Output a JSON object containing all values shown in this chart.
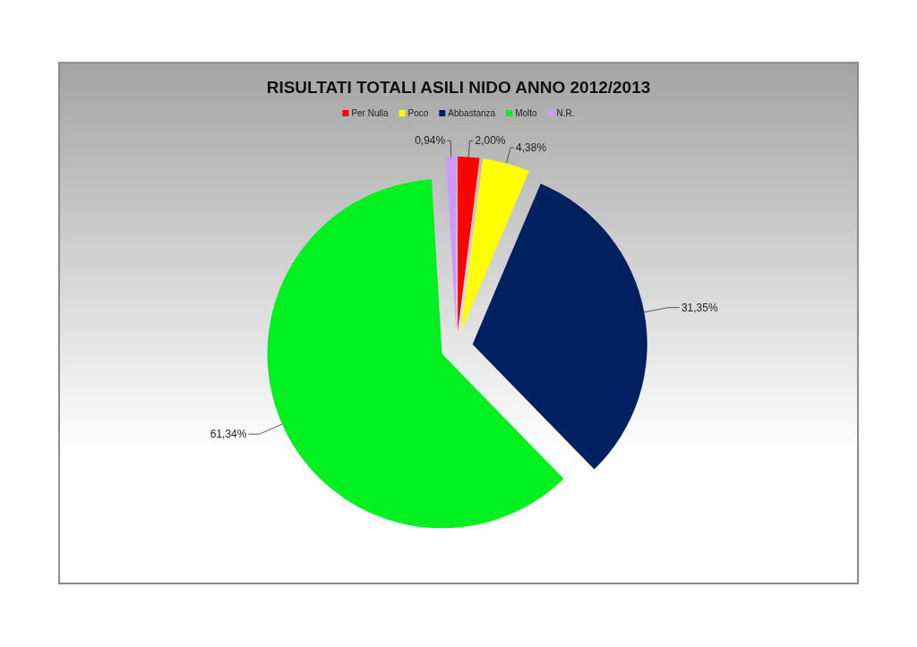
{
  "chart_data": {
    "type": "pie",
    "title": "RISULTATI TOTALI ASILI NIDO ANNO 2012/2013",
    "categories": [
      "Per Nulla",
      "Poco",
      "Abbastanza",
      "Molto",
      "N.R."
    ],
    "values": [
      2.0,
      4.38,
      31.35,
      61.34,
      0.94
    ],
    "colors": [
      "#ff0000",
      "#ffff00",
      "#002060",
      "#00f020",
      "#cc99ff"
    ],
    "value_labels": [
      "2,00%",
      "4,38%",
      "31,35%",
      "61,34%",
      "0,94%"
    ],
    "legend": "top"
  }
}
